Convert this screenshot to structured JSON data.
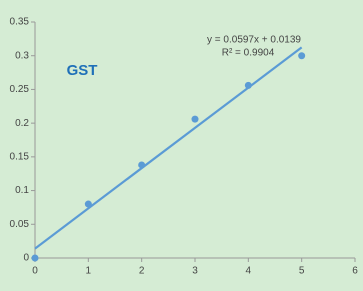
{
  "chart_data": {
    "type": "scatter",
    "title": "GST",
    "series": [
      {
        "name": "GST",
        "color": "#5b9bd5",
        "x": [
          0,
          1,
          2,
          3,
          4,
          5
        ],
        "values": [
          0,
          0.08,
          0.138,
          0.206,
          0.256,
          0.3
        ]
      }
    ],
    "trendline": {
      "slope": 0.0597,
      "intercept": 0.0139,
      "color": "#5b9bd5",
      "equation": "y = 0.0597x + 0.0139",
      "r2_label": "R² = 0.9904"
    },
    "xlim": [
      0,
      6
    ],
    "xticks": [
      0,
      1,
      2,
      3,
      4,
      5,
      6
    ],
    "ylim": [
      0,
      0.35
    ],
    "yticks": [
      0,
      0.05,
      0.1,
      0.15,
      0.2,
      0.25,
      0.3,
      0.35
    ],
    "grid": false,
    "background": "#d5ecd4"
  }
}
